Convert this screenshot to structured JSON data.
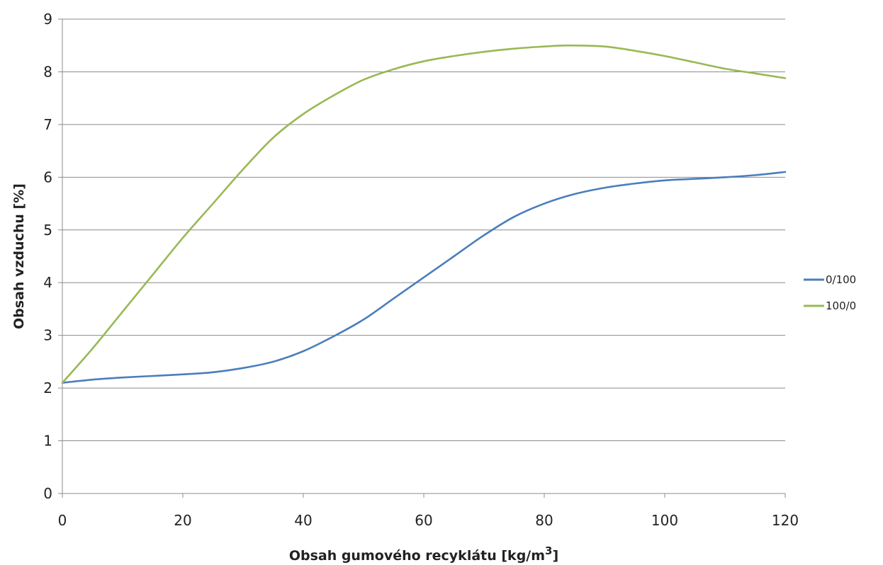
{
  "chart_data": {
    "type": "line",
    "xlabel": "Obsah gumového recyklátu [kg/m",
    "xlabel_sup": "3",
    "xlabel_suffix": "]",
    "ylabel": "Obsah vzduchu  [%]",
    "xlim": [
      0,
      120
    ],
    "ylim": [
      0,
      9
    ],
    "x_ticks": [
      0,
      20,
      40,
      60,
      80,
      100,
      120
    ],
    "y_ticks": [
      0,
      1,
      2,
      3,
      4,
      5,
      6,
      7,
      8,
      9
    ],
    "grid": "horizontal",
    "legend_position": "right",
    "series": [
      {
        "name": "0/100",
        "color": "#4a7ebb",
        "x": [
          0,
          5,
          10,
          15,
          20,
          25,
          30,
          35,
          40,
          45,
          50,
          55,
          60,
          65,
          70,
          75,
          80,
          85,
          90,
          95,
          100,
          105,
          110,
          115,
          120
        ],
        "y": [
          2.1,
          2.16,
          2.2,
          2.23,
          2.26,
          2.3,
          2.38,
          2.5,
          2.7,
          2.98,
          3.3,
          3.7,
          4.1,
          4.5,
          4.9,
          5.25,
          5.5,
          5.68,
          5.8,
          5.88,
          5.94,
          5.97,
          6.0,
          6.04,
          6.1
        ]
      },
      {
        "name": "100/0",
        "color": "#98b954",
        "x": [
          0,
          5,
          10,
          15,
          20,
          25,
          30,
          35,
          40,
          45,
          50,
          55,
          60,
          65,
          70,
          75,
          80,
          84,
          90,
          95,
          100,
          105,
          110,
          115,
          120
        ],
        "y": [
          2.1,
          2.75,
          3.45,
          4.15,
          4.85,
          5.5,
          6.15,
          6.75,
          7.2,
          7.55,
          7.85,
          8.05,
          8.2,
          8.3,
          8.38,
          8.44,
          8.48,
          8.5,
          8.48,
          8.4,
          8.3,
          8.18,
          8.06,
          7.97,
          7.88
        ]
      }
    ]
  }
}
